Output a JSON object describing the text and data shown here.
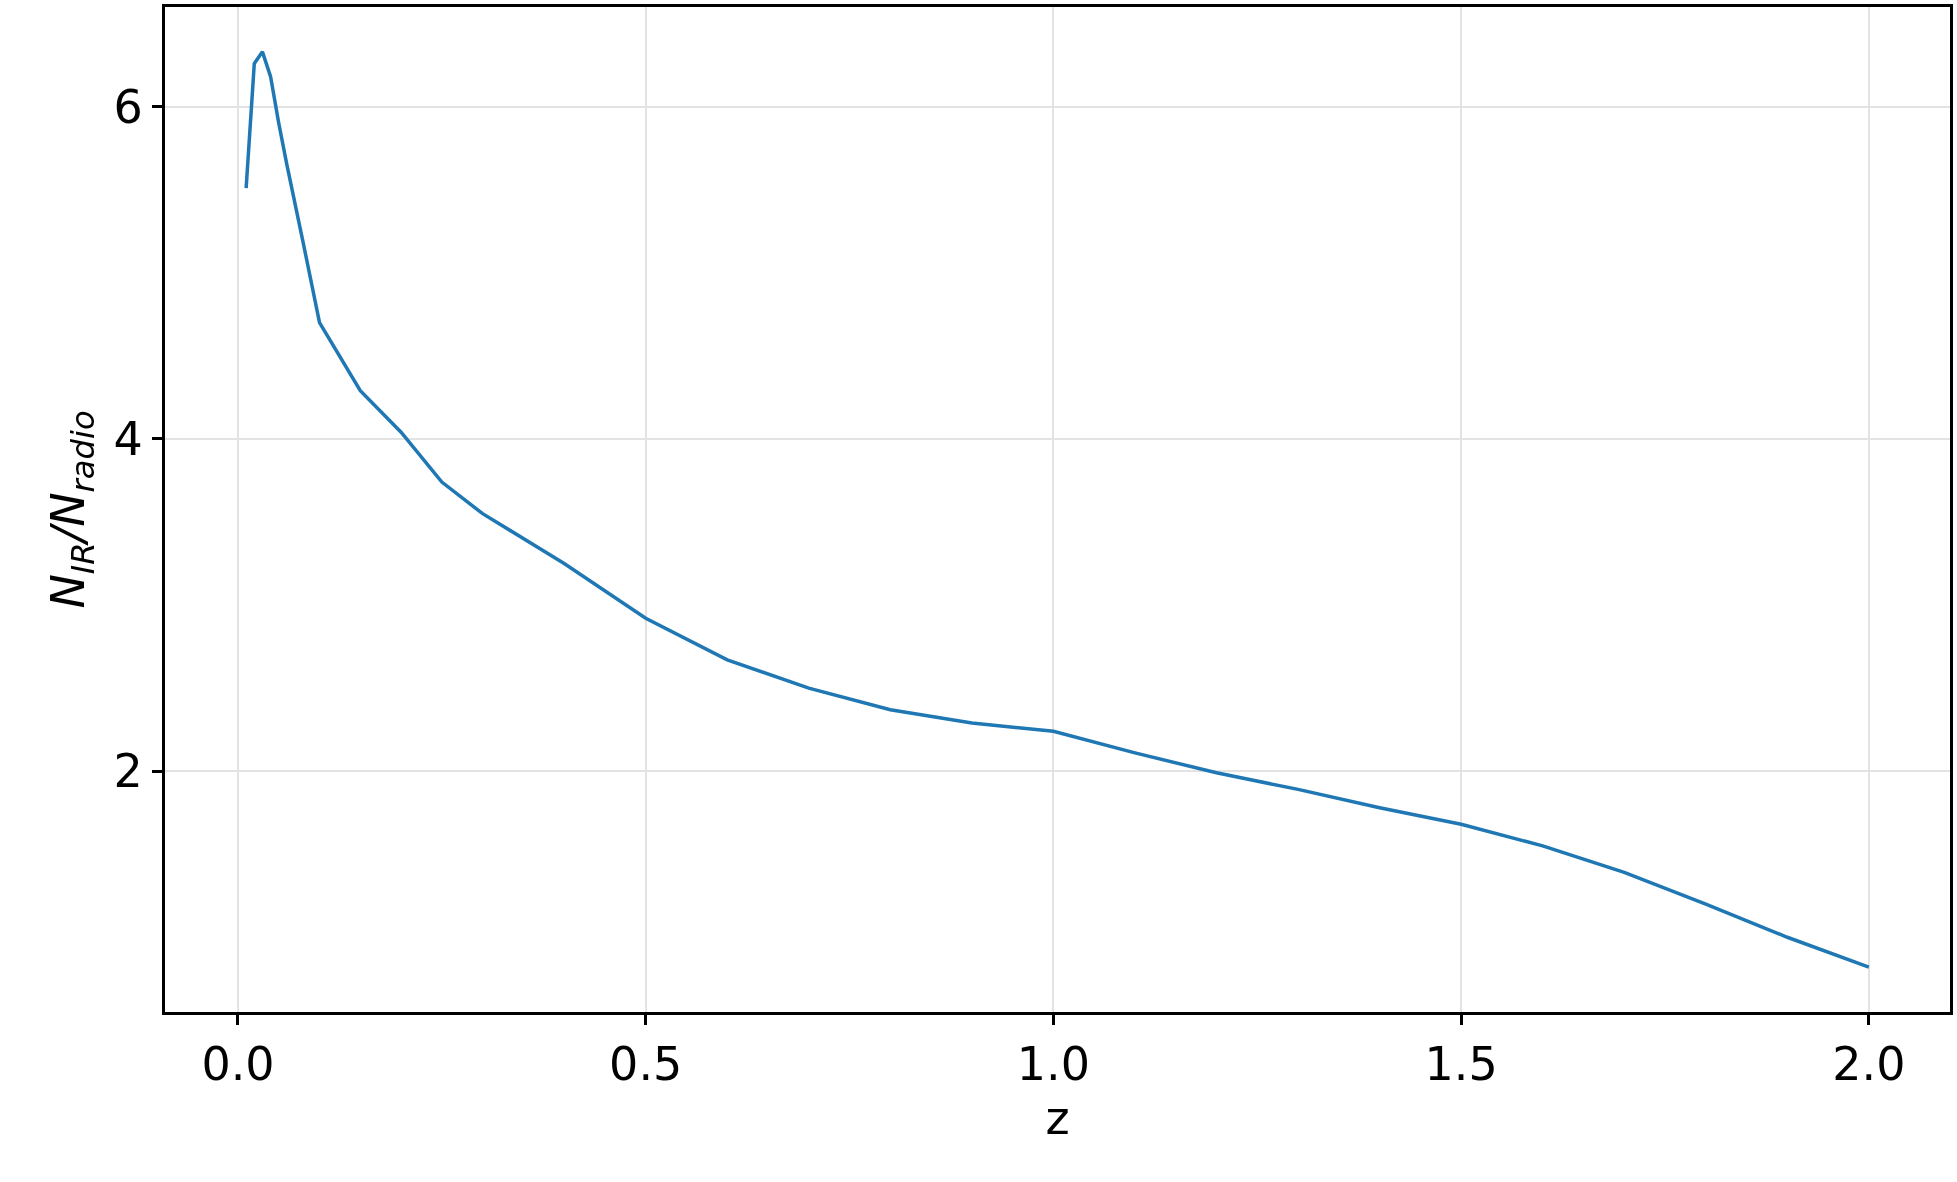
{
  "chart_data": {
    "type": "line",
    "xlabel": "z",
    "ylabel": "N$_{IR}$/N$_{radio}$",
    "x": [
      0.01,
      0.02,
      0.03,
      0.04,
      0.05,
      0.06,
      0.08,
      0.1,
      0.15,
      0.2,
      0.25,
      0.3,
      0.4,
      0.5,
      0.6,
      0.7,
      0.8,
      0.9,
      1.0,
      1.1,
      1.2,
      1.3,
      1.4,
      1.5,
      1.6,
      1.7,
      1.8,
      1.9,
      2.0
    ],
    "series": [
      {
        "color": "#1f77b4",
        "values": [
          5.51,
          6.26,
          6.33,
          6.18,
          5.9,
          5.65,
          5.18,
          4.7,
          4.29,
          4.04,
          3.74,
          3.55,
          3.25,
          2.92,
          2.67,
          2.5,
          2.37,
          2.29,
          2.24,
          2.11,
          1.99,
          1.89,
          1.78,
          1.68,
          1.55,
          1.39,
          1.2,
          1.0,
          0.82
        ]
      }
    ],
    "xlim": [
      -0.0895,
      2.0995
    ],
    "ylim": [
      0.55,
      6.6
    ],
    "xticks": [
      {
        "value": 0,
        "label": "0.0"
      },
      {
        "value": 0.5,
        "label": "0.5"
      },
      {
        "value": 1,
        "label": "1.0"
      },
      {
        "value": 1.5,
        "label": "1.5"
      },
      {
        "value": 2,
        "label": "2.0"
      }
    ],
    "yticks": [
      2,
      4,
      6
    ],
    "grid": true,
    "legend": false,
    "marker": "none",
    "line_style": "solid"
  }
}
